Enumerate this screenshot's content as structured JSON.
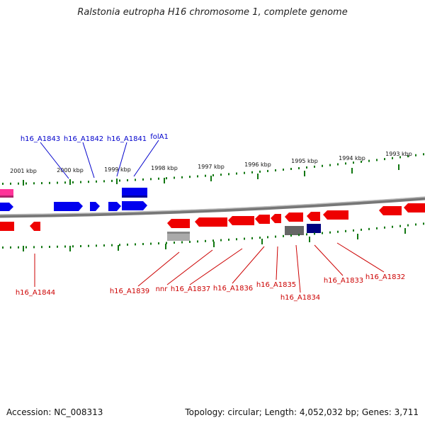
{
  "title": "Ralstonia eutropha H16 chromosome 1, complete genome",
  "footer": {
    "accession": "Accession: NC_008313",
    "topology": "Topology: circular; Length: 4,052,032 bp; Genes: 3,711"
  },
  "colors": {
    "forward_gene": "#0000ee",
    "reverse_gene": "#ee0000",
    "pink_gene": "#ff3399",
    "gray_gene": "#aaaaaa",
    "dark_gray_gene": "#666666",
    "navy_gene": "#000080",
    "backbone": "#888888",
    "tick": "#117711",
    "forward_label": "#0000cc",
    "reverse_label": "#cc0000"
  },
  "kbp_ticks": [
    "2001 kbp",
    "2000 kbp",
    "1999 kbp",
    "1998 kbp",
    "1997 kbp",
    "1996 kbp",
    "1995 kbp",
    "1994 kbp",
    "1993 kbp"
  ],
  "forward_labels": [
    "h16_A1843",
    "h16_A1842",
    "h16_A1841",
    "folA1"
  ],
  "reverse_labels": [
    "h16_A1844",
    "h16_A1839",
    "nnr",
    "h16_A1837",
    "h16_A1836",
    "h16_A1835",
    "h16_A1834",
    "h16_A1833",
    "h16_A1832"
  ]
}
